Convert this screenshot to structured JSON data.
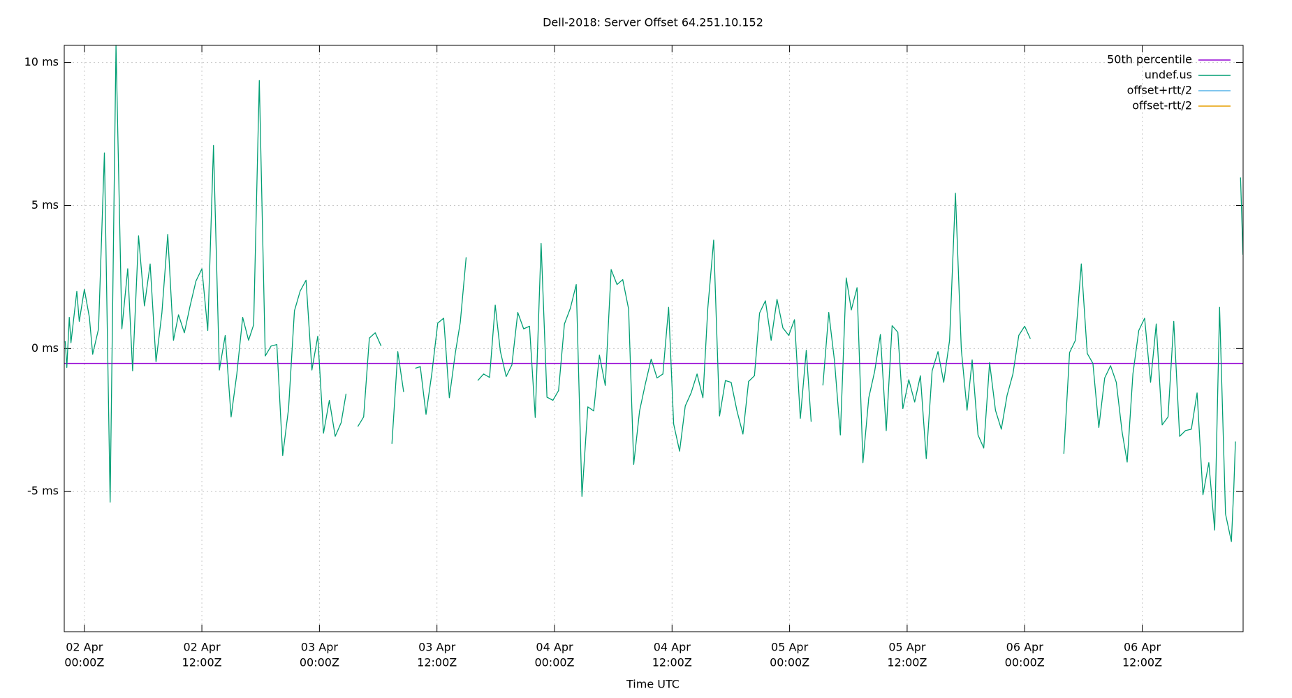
{
  "chart_data": {
    "type": "line",
    "title": "Dell-2018: Server Offset 64.251.10.152",
    "x_label": "Time UTC",
    "xlim": [
      "01 Apr 21:57Z",
      "06 Apr 22:18Z"
    ],
    "xticks": [
      {
        "value": "02 Apr 00:00Z",
        "label": [
          "02 Apr",
          "00:00Z"
        ]
      },
      {
        "value": "02 Apr 12:00Z",
        "label": [
          "02 Apr",
          "12:00Z"
        ]
      },
      {
        "value": "03 Apr 00:00Z",
        "label": [
          "03 Apr",
          "00:00Z"
        ]
      },
      {
        "value": "03 Apr 12:00Z",
        "label": [
          "03 Apr",
          "12:00Z"
        ]
      },
      {
        "value": "04 Apr 00:00Z",
        "label": [
          "04 Apr",
          "00:00Z"
        ]
      },
      {
        "value": "04 Apr 12:00Z",
        "label": [
          "04 Apr",
          "12:00Z"
        ]
      },
      {
        "value": "05 Apr 00:00Z",
        "label": [
          "05 Apr",
          "00:00Z"
        ]
      },
      {
        "value": "05 Apr 12:00Z",
        "label": [
          "05 Apr",
          "12:00Z"
        ]
      },
      {
        "value": "06 Apr 00:00Z",
        "label": [
          "06 Apr",
          "00:00Z"
        ]
      },
      {
        "value": "06 Apr 12:00Z",
        "label": [
          "06 Apr",
          "12:00Z"
        ]
      }
    ],
    "ylim": [
      -9.9,
      10.6
    ],
    "yticks": [
      {
        "value": 10,
        "label": "10 ms"
      },
      {
        "value": 5,
        "label": "5 ms"
      },
      {
        "value": 0,
        "label": "0 ms"
      },
      {
        "value": -5,
        "label": "-5 ms"
      }
    ],
    "grid": true,
    "legend": "top-right",
    "x": [
      "01 Apr 22:03Z",
      "01 Apr 22:13Z",
      "01 Apr 22:28Z",
      "01 Apr 22:38Z",
      "01 Apr 23:14Z",
      "01 Apr 23:29Z",
      "02 Apr 00:00Z",
      "02 Apr 00:31Z",
      "02 Apr 00:51Z",
      "02 Apr 01:27Z",
      "02 Apr 02:03Z",
      "02 Apr 02:38Z",
      "02 Apr 03:14Z",
      "02 Apr 03:50Z",
      "02 Apr 04:26Z",
      "02 Apr 04:56Z",
      "02 Apr 05:32Z",
      "02 Apr 06:08Z",
      "02 Apr 06:43Z",
      "02 Apr 07:19Z",
      "02 Apr 07:55Z",
      "02 Apr 08:31Z",
      "02 Apr 09:06Z",
      "02 Apr 09:37Z",
      "02 Apr 10:13Z",
      "02 Apr 10:48Z",
      "02 Apr 11:24Z",
      "02 Apr 12:00Z",
      "02 Apr 12:36Z",
      "02 Apr 13:11Z",
      "02 Apr 13:47Z",
      "02 Apr 14:23Z",
      "02 Apr 14:59Z",
      "02 Apr 15:34Z",
      "02 Apr 16:10Z",
      "02 Apr 16:46Z",
      "02 Apr 17:17Z",
      "02 Apr 17:52Z",
      "02 Apr 18:28Z",
      "02 Apr 19:04Z",
      "02 Apr 19:39Z",
      "02 Apr 20:15Z",
      "02 Apr 20:51Z",
      "02 Apr 21:27Z",
      "02 Apr 22:02Z",
      "02 Apr 22:38Z",
      "02 Apr 23:14Z",
      "02 Apr 23:50Z",
      "03 Apr 00:25Z",
      "03 Apr 01:01Z",
      "03 Apr 01:37Z",
      "03 Apr 02:13Z",
      "03 Apr 02:43Z",
      "03 Apr 03:19Z",
      "03 Apr 03:55Z",
      "03 Apr 04:31Z",
      "03 Apr 05:06Z",
      "03 Apr 05:42Z",
      "03 Apr 06:18Z",
      "03 Apr 06:51Z",
      "03 Apr 07:24Z",
      "03 Apr 08:00Z",
      "03 Apr 08:36Z",
      "03 Apr 09:11Z",
      "03 Apr 09:47Z",
      "03 Apr 10:18Z",
      "03 Apr 10:53Z",
      "03 Apr 11:29Z",
      "03 Apr 12:05Z",
      "03 Apr 12:41Z",
      "03 Apr 13:16Z",
      "03 Apr 13:52Z",
      "03 Apr 14:23Z",
      "03 Apr 14:59Z",
      "03 Apr 15:34Z",
      "03 Apr 16:10Z",
      "03 Apr 16:46Z",
      "03 Apr 17:22Z",
      "03 Apr 17:57Z",
      "03 Apr 18:28Z",
      "03 Apr 19:04Z",
      "03 Apr 19:39Z",
      "03 Apr 20:15Z",
      "03 Apr 20:51Z",
      "03 Apr 21:27Z",
      "03 Apr 22:02Z",
      "03 Apr 22:38Z",
      "03 Apr 23:14Z",
      "03 Apr 23:50Z",
      "04 Apr 00:25Z",
      "04 Apr 01:01Z",
      "04 Apr 01:37Z",
      "04 Apr 02:13Z",
      "04 Apr 02:48Z",
      "04 Apr 03:24Z",
      "04 Apr 04:00Z",
      "04 Apr 04:35Z",
      "04 Apr 05:11Z",
      "04 Apr 05:47Z",
      "04 Apr 06:23Z",
      "04 Apr 06:58Z",
      "04 Apr 07:34Z",
      "04 Apr 08:05Z",
      "04 Apr 08:41Z",
      "04 Apr 09:16Z",
      "04 Apr 09:52Z",
      "04 Apr 10:28Z",
      "04 Apr 11:04Z",
      "04 Apr 11:39Z",
      "04 Apr 12:10Z",
      "04 Apr 12:46Z",
      "04 Apr 13:21Z",
      "04 Apr 13:57Z",
      "04 Apr 14:33Z",
      "04 Apr 15:09Z",
      "04 Apr 15:39Z",
      "04 Apr 16:15Z",
      "04 Apr 16:51Z",
      "04 Apr 17:27Z",
      "04 Apr 18:02Z",
      "04 Apr 18:38Z",
      "04 Apr 19:14Z",
      "04 Apr 19:49Z",
      "04 Apr 20:25Z",
      "04 Apr 20:56Z",
      "04 Apr 21:32Z",
      "04 Apr 22:07Z",
      "04 Apr 22:43Z",
      "04 Apr 23:19Z",
      "04 Apr 23:55Z",
      "05 Apr 00:30Z",
      "05 Apr 01:06Z",
      "05 Apr 01:42Z",
      "05 Apr 02:12Z",
      "05 Apr 02:48Z",
      "05 Apr 03:24Z",
      "05 Apr 04:00Z",
      "05 Apr 04:35Z",
      "05 Apr 05:11Z",
      "05 Apr 05:47Z",
      "05 Apr 06:18Z",
      "05 Apr 06:53Z",
      "05 Apr 07:29Z",
      "05 Apr 08:05Z",
      "05 Apr 08:41Z",
      "05 Apr 09:16Z",
      "05 Apr 09:52Z",
      "05 Apr 10:28Z",
      "05 Apr 11:03Z",
      "05 Apr 11:34Z",
      "05 Apr 12:10Z",
      "05 Apr 12:46Z",
      "05 Apr 13:21Z",
      "05 Apr 13:57Z",
      "05 Apr 14:33Z",
      "05 Apr 15:09Z",
      "05 Apr 15:44Z",
      "05 Apr 16:20Z",
      "05 Apr 16:56Z",
      "05 Apr 17:32Z",
      "05 Apr 18:07Z",
      "05 Apr 18:38Z",
      "05 Apr 19:14Z",
      "05 Apr 19:49Z",
      "05 Apr 20:25Z",
      "05 Apr 21:01Z",
      "05 Apr 21:37Z",
      "05 Apr 22:12Z",
      "05 Apr 22:48Z",
      "05 Apr 23:24Z",
      "06 Apr 00:00Z",
      "06 Apr 00:35Z",
      "06 Apr 02:17Z",
      "06 Apr 04:00Z",
      "06 Apr 04:35Z",
      "06 Apr 05:11Z",
      "06 Apr 05:47Z",
      "06 Apr 06:23Z",
      "06 Apr 06:58Z",
      "06 Apr 07:34Z",
      "06 Apr 08:10Z",
      "06 Apr 08:46Z",
      "06 Apr 09:21Z",
      "06 Apr 09:57Z",
      "06 Apr 10:28Z",
      "06 Apr 11:03Z",
      "06 Apr 11:39Z",
      "06 Apr 12:15Z",
      "06 Apr 12:51Z",
      "06 Apr 13:26Z",
      "06 Apr 14:02Z",
      "06 Apr 14:38Z",
      "06 Apr 15:13Z",
      "06 Apr 15:49Z",
      "06 Apr 16:25Z",
      "06 Apr 17:01Z",
      "06 Apr 17:36Z",
      "06 Apr 18:12Z",
      "06 Apr 18:48Z",
      "06 Apr 19:24Z",
      "06 Apr 19:54Z",
      "06 Apr 20:30Z",
      "06 Apr 21:06Z",
      "06 Apr 21:21Z",
      "06 Apr 21:31Z",
      "06 Apr 21:46Z",
      "06 Apr 22:02Z",
      "06 Apr 22:17Z"
    ],
    "series": [
      {
        "name": "50th percentile",
        "color": "#9400d3",
        "value": -0.52
      },
      {
        "name": "undef.us",
        "color": "#009e73",
        "values": [
          0.26,
          -0.66,
          1.09,
          0.2,
          2.0,
          0.95,
          2.07,
          1.09,
          -0.2,
          0.69,
          6.84,
          -5.37,
          10.6,
          0.69,
          2.79,
          -0.78,
          3.94,
          1.49,
          2.96,
          -0.46,
          1.24,
          3.99,
          0.29,
          1.18,
          0.55,
          1.49,
          2.36,
          2.79,
          0.63,
          7.1,
          -0.75,
          0.46,
          -2.39,
          -0.89,
          1.09,
          0.29,
          0.83,
          9.37,
          -0.26,
          0.09,
          0.14,
          -3.74,
          -2.1,
          1.32,
          2.01,
          2.39,
          -0.75,
          0.43,
          -2.96,
          -1.81,
          -3.07,
          -2.59,
          -1.58,
          null,
          -2.73,
          -2.39,
          0.37,
          0.55,
          0.09,
          null,
          -3.33,
          -0.11,
          -1.52,
          null,
          -0.69,
          -0.63,
          -2.3,
          -0.86,
          0.89,
          1.06,
          -1.72,
          -0.17,
          0.92,
          3.19,
          null,
          -1.12,
          -0.89,
          -1.01,
          1.52,
          -0.09,
          -0.98,
          -0.57,
          1.26,
          0.69,
          0.78,
          -2.41,
          3.68,
          -1.7,
          -1.81,
          -1.47,
          0.86,
          1.41,
          2.24,
          -5.17,
          -2.04,
          -2.18,
          -0.23,
          -1.29,
          2.76,
          2.24,
          2.41,
          1.38,
          -4.05,
          -2.18,
          -1.24,
          -0.37,
          -1.03,
          -0.89,
          1.44,
          -2.64,
          -3.59,
          -2.01,
          -1.55,
          -0.89,
          -1.72,
          1.41,
          3.79,
          -2.36,
          -1.12,
          -1.18,
          -2.18,
          -2.99,
          -1.15,
          -0.95,
          1.24,
          1.67,
          0.29,
          1.72,
          0.72,
          0.46,
          1.01,
          -2.44,
          -0.06,
          -2.56,
          null,
          -1.29,
          1.26,
          -0.43,
          -3.02,
          2.47,
          1.35,
          2.13,
          -3.99,
          -1.72,
          -0.8,
          0.49,
          -2.87,
          0.8,
          0.57,
          -2.1,
          -1.09,
          -1.87,
          -0.95,
          -3.85,
          -0.78,
          -0.11,
          -1.18,
          0.29,
          5.43,
          -0.03,
          -2.16,
          -0.4,
          -3.02,
          -3.48,
          -0.49,
          -2.16,
          -2.82,
          -1.64,
          -0.89,
          0.46,
          0.78,
          0.34,
          null,
          -3.68,
          -0.14,
          0.29,
          2.96,
          -0.17,
          -0.52,
          -2.76,
          -1.03,
          -0.6,
          -1.18,
          -2.93,
          -3.97,
          -0.89,
          0.63,
          1.06,
          -1.18,
          0.86,
          -2.67,
          -2.39,
          0.95,
          -3.07,
          -2.87,
          -2.82,
          -1.55,
          -5.11,
          -3.99,
          -6.35,
          1.44,
          -5.78,
          -6.75,
          -4.86,
          -3.25,
          null,
          5.98,
          3.28
        ]
      },
      {
        "name": "offset+rtt/2",
        "color": "#56b4e9"
      },
      {
        "name": "offset-rtt/2",
        "color": "#e69f00"
      }
    ]
  }
}
